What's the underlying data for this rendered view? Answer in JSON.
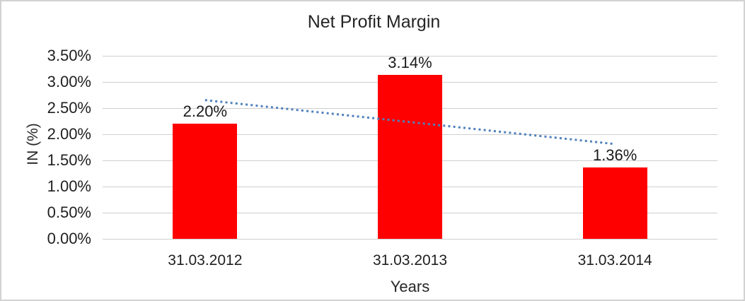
{
  "chart_data": {
    "type": "bar",
    "title": "Net Profit Margin",
    "xlabel": "Years",
    "ylabel": "IN (%)",
    "categories": [
      "31.03.2012",
      "31.03.2013",
      "31.03.2014"
    ],
    "values": [
      2.2,
      3.14,
      1.36
    ],
    "data_labels": [
      "2.20%",
      "3.14%",
      "1.36%"
    ],
    "ylim": [
      0,
      3.5
    ],
    "y_ticks": [
      {
        "value": 0.0,
        "label": "0.00%"
      },
      {
        "value": 0.5,
        "label": "0.50%"
      },
      {
        "value": 1.0,
        "label": "1.00%"
      },
      {
        "value": 1.5,
        "label": "1.50%"
      },
      {
        "value": 2.0,
        "label": "2.00%"
      },
      {
        "value": 2.5,
        "label": "2.50%"
      },
      {
        "value": 3.0,
        "label": "3.00%"
      },
      {
        "value": 3.5,
        "label": "3.50%"
      }
    ],
    "grid": true,
    "legend": false,
    "bar_color": "#FF0000",
    "gridline_color": "#CFCFCF",
    "trendline": {
      "type": "linear",
      "style": "dotted",
      "color": "#4F81BD",
      "start_value": 2.653,
      "end_value": 1.813
    }
  }
}
